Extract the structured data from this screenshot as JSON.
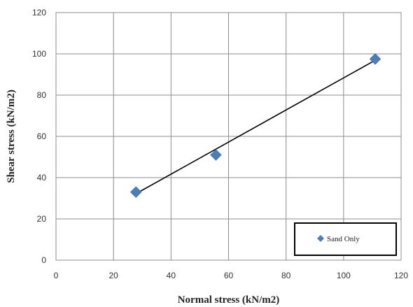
{
  "chart_data": {
    "type": "scatter",
    "title": "",
    "xlabel": "Normal stress (kN/m2)",
    "ylabel": "Shear stress (kN/m2)",
    "xlim": [
      0,
      120
    ],
    "ylim": [
      0,
      120
    ],
    "x_ticks": [
      "0",
      "20",
      "40",
      "60",
      "80",
      "100",
      "120"
    ],
    "y_ticks": [
      "0",
      "20",
      "40",
      "60",
      "80",
      "100",
      "120"
    ],
    "grid": true,
    "legend_position": "bottom-right",
    "series": [
      {
        "name": "Sand Only",
        "marker": "diamond",
        "color": "#4a7ebb",
        "x": [
          27.8,
          55.6,
          111.0
        ],
        "y": [
          33.0,
          51.0,
          97.5
        ]
      }
    ],
    "trendline": {
      "color": "#000000",
      "x": [
        27.8,
        111.0
      ],
      "y": [
        32.2,
        96.9
      ]
    }
  }
}
